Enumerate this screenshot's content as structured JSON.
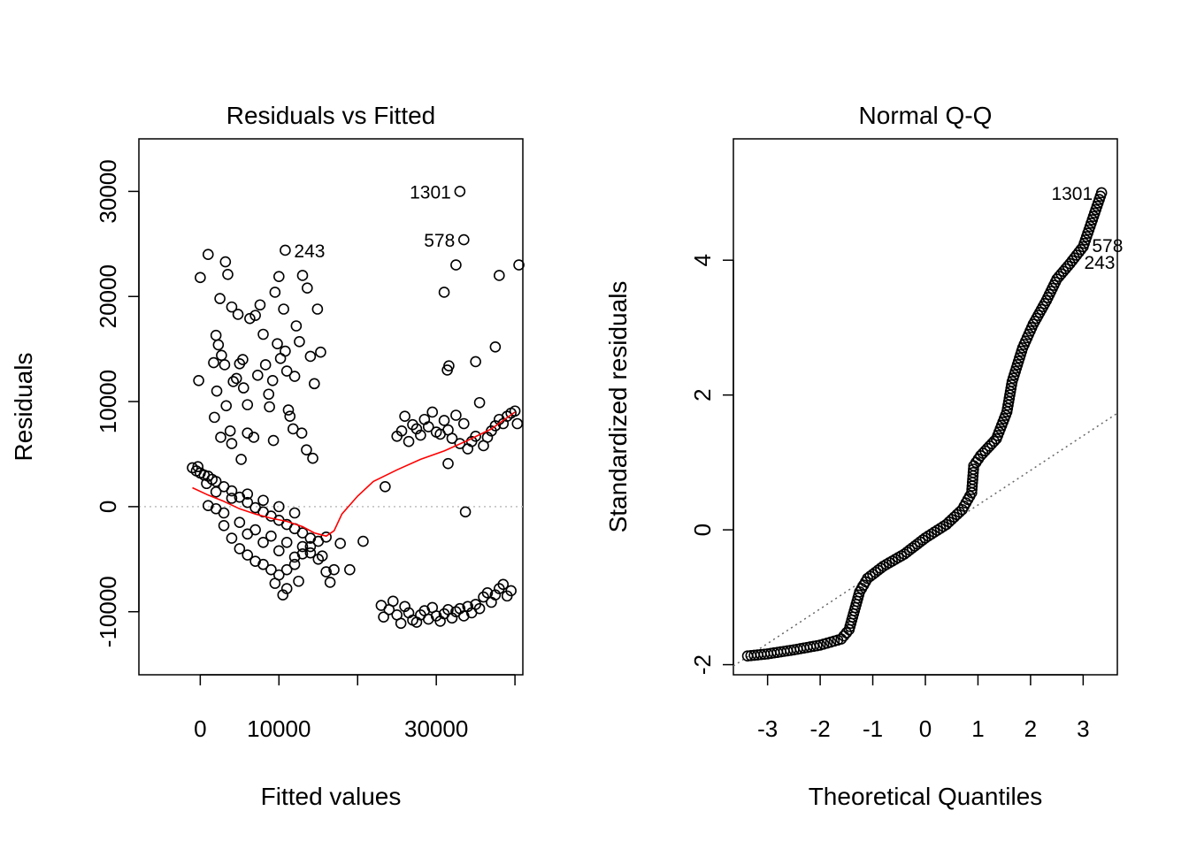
{
  "chart_data": [
    {
      "type": "scatter",
      "title": "Residuals vs Fitted",
      "xlabel": "Fitted values",
      "ylabel": "Residuals",
      "xlim": [
        -7800,
        41000
      ],
      "ylim": [
        -16000,
        35000
      ],
      "xticks": [
        0,
        10000,
        20000,
        30000,
        40000
      ],
      "xtick_labels": [
        "0",
        "10000",
        "",
        "30000",
        ""
      ],
      "yticks": [
        -10000,
        0,
        10000,
        20000,
        30000
      ],
      "ytick_labels": [
        "-10000",
        "0",
        "10000",
        "20000",
        "30000"
      ],
      "reference_line": {
        "y": 0,
        "style": "dotted",
        "color": "#bebebe"
      },
      "smooth_color": "#ff0000",
      "smooth_line": [
        [
          -1000,
          1800
        ],
        [
          1000,
          1100
        ],
        [
          3000,
          500
        ],
        [
          5000,
          -200
        ],
        [
          7000,
          -700
        ],
        [
          9000,
          -1100
        ],
        [
          11000,
          -1400
        ],
        [
          13000,
          -1900
        ],
        [
          14500,
          -2500
        ],
        [
          16000,
          -2800
        ],
        [
          17000,
          -2300
        ],
        [
          18000,
          -700
        ],
        [
          20000,
          1000
        ],
        [
          22000,
          2400
        ],
        [
          25000,
          3500
        ],
        [
          28000,
          4500
        ],
        [
          31000,
          5300
        ],
        [
          34000,
          6300
        ],
        [
          37000,
          7400
        ],
        [
          40000,
          9000
        ]
      ],
      "points_sampled": [
        [
          -1000,
          3700
        ],
        [
          -500,
          3400
        ],
        [
          0,
          3200
        ],
        [
          500,
          3000
        ],
        [
          1000,
          2900
        ],
        [
          1500,
          2600
        ],
        [
          2000,
          2400
        ],
        [
          3000,
          1900
        ],
        [
          4000,
          1500
        ],
        [
          5000,
          900
        ],
        [
          6000,
          400
        ],
        [
          7000,
          -100
        ],
        [
          8000,
          -500
        ],
        [
          9000,
          -900
        ],
        [
          10000,
          -1300
        ],
        [
          11000,
          -1700
        ],
        [
          12000,
          -2100
        ],
        [
          13000,
          -2500
        ],
        [
          14000,
          -3000
        ],
        [
          15000,
          -3300
        ],
        [
          16000,
          -2900
        ],
        [
          -300,
          3800
        ],
        [
          800,
          2200
        ],
        [
          2000,
          -200
        ],
        [
          3000,
          -1800
        ],
        [
          4000,
          -3000
        ],
        [
          5000,
          -4000
        ],
        [
          6000,
          -4600
        ],
        [
          7000,
          -5200
        ],
        [
          8000,
          -5500
        ],
        [
          9000,
          -6000
        ],
        [
          10000,
          -6500
        ],
        [
          11000,
          -6000
        ],
        [
          12000,
          -5500
        ],
        [
          13000,
          -4500
        ],
        [
          14000,
          -3800
        ],
        [
          15000,
          -5000
        ],
        [
          16000,
          -6200
        ],
        [
          17000,
          -6000
        ],
        [
          1000,
          100
        ],
        [
          3000,
          -600
        ],
        [
          5000,
          -1500
        ],
        [
          7000,
          -2200
        ],
        [
          9000,
          -2800
        ],
        [
          11000,
          -3400
        ],
        [
          13000,
          -3800
        ],
        [
          6000,
          1200
        ],
        [
          8000,
          600
        ],
        [
          10000,
          0
        ],
        [
          12000,
          -600
        ],
        [
          2000,
          1400
        ],
        [
          4000,
          800
        ],
        [
          6000,
          -2600
        ],
        [
          8000,
          -3400
        ],
        [
          10000,
          -4200
        ],
        [
          12000,
          -4800
        ],
        [
          14000,
          -4400
        ],
        [
          15500,
          -4700
        ],
        [
          10500,
          -8400
        ],
        [
          9500,
          -7300
        ],
        [
          11000,
          -7800
        ],
        [
          12500,
          -7100
        ],
        [
          16500,
          -7200
        ],
        [
          17800,
          -3500
        ],
        [
          19000,
          -6000
        ],
        [
          1000,
          24000
        ],
        [
          0,
          21800
        ],
        [
          -200,
          12000
        ],
        [
          3200,
          23300
        ],
        [
          2500,
          19800
        ],
        [
          3500,
          22100
        ],
        [
          2000,
          16300
        ],
        [
          1700,
          13700
        ],
        [
          2100,
          11000
        ],
        [
          1800,
          8500
        ],
        [
          2300,
          15400
        ],
        [
          2700,
          14400
        ],
        [
          3100,
          13500
        ],
        [
          3300,
          9600
        ],
        [
          2600,
          6600
        ],
        [
          3800,
          7200
        ],
        [
          4200,
          11900
        ],
        [
          4600,
          12200
        ],
        [
          5000,
          13600
        ],
        [
          5500,
          11300
        ],
        [
          6000,
          9700
        ],
        [
          6300,
          17900
        ],
        [
          7000,
          18200
        ],
        [
          7600,
          19200
        ],
        [
          8000,
          16400
        ],
        [
          8300,
          13500
        ],
        [
          8700,
          10700
        ],
        [
          9200,
          12000
        ],
        [
          9800,
          15500
        ],
        [
          10200,
          14100
        ],
        [
          10600,
          18800
        ],
        [
          11000,
          12900
        ],
        [
          11400,
          8600
        ],
        [
          11800,
          7400
        ],
        [
          12200,
          17200
        ],
        [
          12600,
          15700
        ],
        [
          13000,
          22000
        ],
        [
          13600,
          20800
        ],
        [
          14000,
          14300
        ],
        [
          14500,
          11700
        ],
        [
          14900,
          18800
        ],
        [
          15300,
          14700
        ],
        [
          9500,
          20400
        ],
        [
          10000,
          21900
        ],
        [
          4000,
          19000
        ],
        [
          4800,
          18300
        ],
        [
          5400,
          14000
        ],
        [
          6800,
          6600
        ],
        [
          7300,
          12500
        ],
        [
          8800,
          9500
        ],
        [
          9300,
          6300
        ],
        [
          10800,
          14800
        ],
        [
          12900,
          7000
        ],
        [
          14300,
          4600
        ],
        [
          12000,
          12400
        ],
        [
          5200,
          4500
        ],
        [
          4000,
          6000
        ],
        [
          6000,
          7000
        ],
        [
          13500,
          5400
        ],
        [
          11200,
          9200
        ],
        [
          10800,
          24400
        ],
        [
          25000,
          6700
        ],
        [
          25600,
          7200
        ],
        [
          26000,
          8600
        ],
        [
          26500,
          6200
        ],
        [
          27000,
          7800
        ],
        [
          27500,
          7400
        ],
        [
          28000,
          6800
        ],
        [
          28500,
          8300
        ],
        [
          29000,
          7600
        ],
        [
          29500,
          9000
        ],
        [
          30000,
          7100
        ],
        [
          30500,
          6900
        ],
        [
          31000,
          8200
        ],
        [
          31500,
          7300
        ],
        [
          32000,
          6500
        ],
        [
          32500,
          8700
        ],
        [
          33000,
          6000
        ],
        [
          33500,
          7900
        ],
        [
          34000,
          5500
        ],
        [
          34500,
          6200
        ],
        [
          35000,
          6700
        ],
        [
          35500,
          9900
        ],
        [
          36000,
          5800
        ],
        [
          36500,
          6600
        ],
        [
          37000,
          7200
        ],
        [
          37500,
          7700
        ],
        [
          38000,
          8300
        ],
        [
          38500,
          7900
        ],
        [
          39000,
          8600
        ],
        [
          39500,
          8900
        ],
        [
          40000,
          9100
        ],
        [
          40300,
          7900
        ],
        [
          33000,
          30000
        ],
        [
          33500,
          25400
        ],
        [
          32500,
          23000
        ],
        [
          31000,
          20400
        ],
        [
          31400,
          13000
        ],
        [
          31600,
          13400
        ],
        [
          35000,
          13800
        ],
        [
          37500,
          15200
        ],
        [
          38000,
          22000
        ],
        [
          40500,
          23000
        ],
        [
          31500,
          4100
        ],
        [
          33700,
          -500
        ],
        [
          23500,
          1900
        ],
        [
          20700,
          -3300
        ],
        [
          23000,
          -9400
        ],
        [
          23300,
          -10500
        ],
        [
          24000,
          -9800
        ],
        [
          24500,
          -9000
        ],
        [
          25000,
          -10300
        ],
        [
          25500,
          -11100
        ],
        [
          26000,
          -9500
        ],
        [
          26500,
          -10100
        ],
        [
          27000,
          -10800
        ],
        [
          27500,
          -11000
        ],
        [
          28000,
          -10300
        ],
        [
          28500,
          -9900
        ],
        [
          29000,
          -10700
        ],
        [
          29500,
          -9600
        ],
        [
          30000,
          -10400
        ],
        [
          30500,
          -10900
        ],
        [
          31000,
          -10200
        ],
        [
          31500,
          -9800
        ],
        [
          32000,
          -10600
        ],
        [
          32500,
          -10000
        ],
        [
          33000,
          -9700
        ],
        [
          33500,
          -10400
        ],
        [
          34000,
          -9500
        ],
        [
          34500,
          -10100
        ],
        [
          35000,
          -9300
        ],
        [
          35500,
          -9700
        ],
        [
          36000,
          -8600
        ],
        [
          36500,
          -8200
        ],
        [
          37000,
          -9100
        ],
        [
          37500,
          -8400
        ],
        [
          38000,
          -7800
        ],
        [
          38500,
          -7400
        ],
        [
          39000,
          -8500
        ],
        [
          39500,
          -8000
        ]
      ],
      "labeled_points": [
        {
          "label": "1301",
          "x": 33000,
          "y": 30000
        },
        {
          "label": "578",
          "x": 33500,
          "y": 25400
        },
        {
          "label": "243",
          "x": 10800,
          "y": 24400
        }
      ]
    },
    {
      "type": "scatter",
      "title": "Normal Q-Q",
      "xlabel": "Theoretical Quantiles",
      "ylabel": "Standardized residuals",
      "xlim": [
        -3.65,
        3.65
      ],
      "ylim": [
        -2.15,
        5.8
      ],
      "xticks": [
        -3,
        -2,
        -1,
        0,
        1,
        2,
        3
      ],
      "xtick_labels": [
        "-3",
        "-2",
        "-1",
        "0",
        "1",
        "2",
        "3"
      ],
      "yticks": [
        -2,
        0,
        2,
        4
      ],
      "ytick_labels": [
        "-2",
        "0",
        "2",
        "4"
      ],
      "reference_line": {
        "x": [
          -3.65,
          3.65
        ],
        "y": [
          -2.02,
          1.73
        ],
        "style": "dotted",
        "color": "#666666"
      },
      "qq_curve": [
        [
          -3.38,
          -1.87
        ],
        [
          -3.0,
          -1.84
        ],
        [
          -2.5,
          -1.78
        ],
        [
          -2.0,
          -1.71
        ],
        [
          -1.6,
          -1.62
        ],
        [
          -1.45,
          -1.48
        ],
        [
          -1.35,
          -1.2
        ],
        [
          -1.25,
          -0.92
        ],
        [
          -1.1,
          -0.72
        ],
        [
          -0.8,
          -0.54
        ],
        [
          -0.4,
          -0.36
        ],
        [
          0.0,
          -0.12
        ],
        [
          0.4,
          0.08
        ],
        [
          0.7,
          0.3
        ],
        [
          0.88,
          0.55
        ],
        [
          0.92,
          0.95
        ],
        [
          1.05,
          1.1
        ],
        [
          1.35,
          1.35
        ],
        [
          1.55,
          1.75
        ],
        [
          1.65,
          2.2
        ],
        [
          1.85,
          2.7
        ],
        [
          2.05,
          3.05
        ],
        [
          2.3,
          3.4
        ],
        [
          2.5,
          3.72
        ],
        [
          2.75,
          3.95
        ],
        [
          3.0,
          4.2
        ],
        [
          3.35,
          5.0
        ]
      ],
      "labeled_points": [
        {
          "label": "1301",
          "x": 3.35,
          "y": 5.0
        },
        {
          "label": "578",
          "x": 3.0,
          "y": 4.2
        },
        {
          "label": "243",
          "x": 2.85,
          "y": 4.03
        }
      ]
    }
  ]
}
